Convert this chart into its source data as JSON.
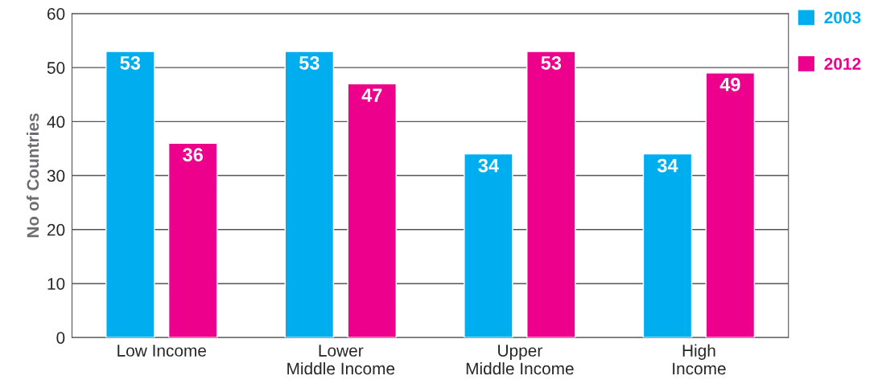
{
  "chart_data": {
    "type": "bar",
    "ylabel": "No of Countries",
    "categories": [
      "Low Income",
      "Lower\nMiddle Income",
      "Upper\nMiddle Income",
      "High\nIncome"
    ],
    "series": [
      {
        "name": "2003",
        "color": "#00aeef",
        "values": [
          53,
          53,
          34,
          34
        ]
      },
      {
        "name": "2012",
        "color": "#ec008c",
        "values": [
          36,
          47,
          53,
          49
        ]
      }
    ],
    "ylim": [
      0,
      60
    ],
    "yticks": [
      0,
      10,
      20,
      30,
      40,
      50,
      60
    ],
    "grid": "y",
    "legend": "top right",
    "data_labels": true
  }
}
